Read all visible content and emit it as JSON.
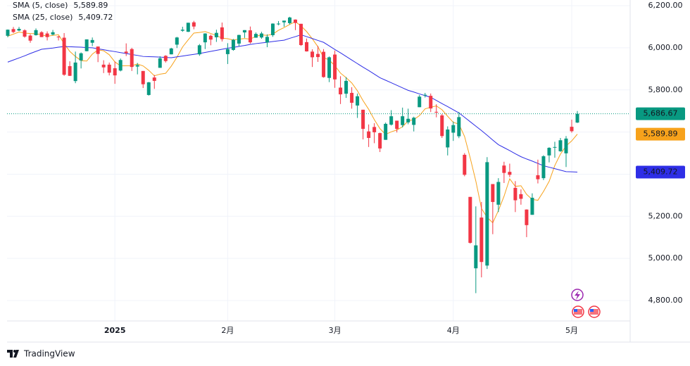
{
  "chart_data": {
    "type": "candlestick",
    "categories": [
      null,
      null,
      null,
      null,
      null,
      null,
      null,
      null,
      null,
      null,
      null,
      null,
      null,
      null,
      null,
      null,
      null,
      null,
      null,
      "2025",
      null,
      null,
      null,
      null,
      null,
      null,
      null,
      null,
      null,
      null,
      null,
      null,
      null,
      null,
      null,
      null,
      null,
      null,
      null,
      "2月",
      null,
      null,
      null,
      null,
      null,
      null,
      null,
      null,
      null,
      null,
      null,
      null,
      null,
      null,
      null,
      null,
      null,
      null,
      "3月",
      null,
      null,
      null,
      null,
      null,
      null,
      null,
      null,
      null,
      null,
      null,
      null,
      null,
      null,
      null,
      null,
      null,
      null,
      null,
      null,
      "4月",
      null,
      null,
      null,
      null,
      null,
      null,
      null,
      null,
      null,
      null,
      null,
      null,
      null,
      null,
      null,
      null,
      null,
      null,
      null,
      null,
      "5月",
      null
    ],
    "ohlc": [
      [
        6057,
        6087,
        6050,
        6086
      ],
      [
        6089,
        6099,
        6070,
        6075
      ],
      [
        6082,
        6099,
        6079,
        6090
      ],
      [
        6083,
        6088,
        6048,
        6053
      ],
      [
        6058,
        6065,
        6024,
        6034
      ],
      [
        6060,
        6092,
        6058,
        6084
      ],
      [
        6074,
        6079,
        6051,
        6051
      ],
      [
        6068,
        6078,
        6035,
        6051
      ],
      [
        6063,
        6085,
        6059,
        6074
      ],
      [
        6053,
        6057,
        6035,
        6050
      ],
      [
        6048,
        6070,
        5867,
        5872
      ],
      [
        5913,
        5936,
        5866,
        5867
      ],
      [
        5842,
        5982,
        5832,
        5930
      ],
      [
        5940,
        5978,
        5902,
        5974
      ],
      [
        5984,
        6040,
        5983,
        6040
      ],
      [
        6024,
        6049,
        6008,
        6037
      ],
      [
        6006,
        6006,
        5932,
        5971
      ],
      [
        5920,
        5941,
        5880,
        5907
      ],
      [
        5920,
        5930,
        5869,
        5882
      ],
      [
        5903,
        5935,
        5829,
        5869
      ],
      [
        5892,
        5949,
        5888,
        5942
      ],
      [
        5982,
        6021,
        5961,
        5975
      ],
      [
        5994,
        6000,
        5890,
        5909
      ],
      [
        5911,
        5928,
        5874,
        5918
      ],
      [
        5890,
        5890,
        5809,
        5827
      ],
      [
        5776,
        5838,
        5773,
        5836
      ],
      [
        5859,
        5871,
        5805,
        5843
      ],
      [
        5905,
        5960,
        5905,
        5950
      ],
      [
        5962,
        5965,
        5930,
        5937
      ],
      [
        5969,
        6000,
        5969,
        5997
      ],
      [
        6015,
        6052,
        5999,
        6049
      ],
      [
        6081,
        6100,
        6076,
        6086
      ],
      [
        6076,
        6119,
        6075,
        6119
      ],
      [
        6121,
        6128,
        6088,
        6101
      ],
      [
        5969,
        6018,
        5962,
        6012
      ],
      [
        6026,
        6069,
        5994,
        6068
      ],
      [
        6057,
        6063,
        6012,
        6039
      ],
      [
        6050,
        6086,
        6028,
        6071
      ],
      [
        6097,
        6120,
        6030,
        6041
      ],
      [
        5970,
        6022,
        5923,
        5994
      ],
      [
        5990,
        6042,
        5986,
        6038
      ],
      [
        6020,
        6062,
        6007,
        6061
      ],
      [
        6073,
        6084,
        6047,
        6084
      ],
      [
        6083,
        6101,
        6020,
        6026
      ],
      [
        6048,
        6073,
        6048,
        6066
      ],
      [
        6049,
        6076,
        6043,
        6068
      ],
      [
        6025,
        6064,
        6003,
        6052
      ],
      [
        6060,
        6116,
        6052,
        6115
      ],
      [
        6115,
        6127,
        6107,
        6115
      ],
      [
        6121,
        6129,
        6100,
        6129
      ],
      [
        6117,
        6147,
        6111,
        6144
      ],
      [
        6134,
        6135,
        6084,
        6118
      ],
      [
        6114,
        6114,
        6009,
        6013
      ],
      [
        6027,
        6044,
        5982,
        5983
      ],
      [
        5982,
        5993,
        5909,
        5955
      ],
      [
        5971,
        6009,
        5933,
        5956
      ],
      [
        5981,
        5994,
        5858,
        5861
      ],
      [
        5857,
        5959,
        5837,
        5955
      ],
      [
        5968,
        5987,
        5810,
        5850
      ],
      [
        5811,
        5865,
        5733,
        5779
      ],
      [
        5782,
        5861,
        5762,
        5843
      ],
      [
        5786,
        5813,
        5711,
        5739
      ],
      [
        5726,
        5783,
        5667,
        5770
      ],
      [
        5706,
        5706,
        5565,
        5615
      ],
      [
        5603,
        5636,
        5529,
        5572
      ],
      [
        5624,
        5642,
        5547,
        5599
      ],
      [
        5595,
        5597,
        5505,
        5522
      ],
      [
        5563,
        5645,
        5563,
        5639
      ],
      [
        5635,
        5704,
        5631,
        5675
      ],
      [
        5654,
        5654,
        5598,
        5615
      ],
      [
        5633,
        5716,
        5622,
        5675
      ],
      [
        5646,
        5711,
        5637,
        5663
      ],
      [
        5634,
        5673,
        5603,
        5668
      ],
      [
        5718,
        5776,
        5718,
        5768
      ],
      [
        5775,
        5786,
        5764,
        5777
      ],
      [
        5772,
        5783,
        5695,
        5712
      ],
      [
        5696,
        5732,
        5670,
        5693
      ],
      [
        5679,
        5686,
        5572,
        5581
      ],
      [
        5527,
        5627,
        5489,
        5612
      ],
      [
        5597,
        5650,
        5558,
        5633
      ],
      [
        5580,
        5695,
        5571,
        5671
      ],
      [
        5492,
        5500,
        5390,
        5397
      ],
      [
        5292,
        5292,
        5070,
        5074
      ],
      [
        4953,
        5247,
        4835,
        5062
      ],
      [
        5194,
        5268,
        4910,
        4983
      ],
      [
        4966,
        5481,
        4950,
        5457
      ],
      [
        5353,
        5353,
        5115,
        5268
      ],
      [
        5255,
        5381,
        5220,
        5363
      ],
      [
        5441,
        5459,
        5358,
        5406
      ],
      [
        5411,
        5450,
        5386,
        5397
      ],
      [
        5335,
        5367,
        5220,
        5276
      ],
      [
        5305,
        5328,
        5255,
        5283
      ],
      [
        5232,
        5233,
        5101,
        5158
      ],
      [
        5207,
        5309,
        5207,
        5288
      ],
      [
        5395,
        5469,
        5356,
        5376
      ],
      [
        5381,
        5490,
        5372,
        5485
      ],
      [
        5489,
        5528,
        5456,
        5525
      ],
      [
        5529,
        5554,
        5478,
        5529
      ],
      [
        5509,
        5572,
        5506,
        5561
      ],
      [
        5499,
        5581,
        5434,
        5569
      ],
      [
        5625,
        5659,
        5597,
        5604
      ],
      [
        5645,
        5700,
        5643,
        5686.67
      ]
    ],
    "up_color": "#089981",
    "down_color": "#f23645",
    "last_close_label": "5,686.67",
    "series": [
      {
        "name": "SMA (5, close)",
        "color": "#f7a21b",
        "last_value_label": "5,589.89",
        "values": [
          6055,
          6065,
          6075,
          6070,
          6068,
          6067,
          6062,
          6055,
          6059,
          6062,
          6020,
          5983,
          5959,
          5939,
          5937,
          5970,
          5990,
          5986,
          5967,
          5933,
          5914,
          5915,
          5915,
          5923,
          5914,
          5893,
          5867,
          5875,
          5879,
          5913,
          5955,
          6004,
          6038,
          6070,
          6073,
          6077,
          6068,
          6058,
          6046,
          6043,
          6037,
          6041,
          6044,
          6041,
          6055,
          6061,
          6059,
          6065,
          6083,
          6096,
          6111,
          6124,
          6104,
          6077,
          6043,
          6005,
          5954,
          5942,
          5915,
          5880,
          5858,
          5833,
          5796,
          5749,
          5708,
          5659,
          5616,
          5589,
          5601,
          5610,
          5625,
          5653,
          5659,
          5678,
          5710,
          5718,
          5724,
          5706,
          5675,
          5646,
          5638,
          5579,
          5477,
          5367,
          5237,
          5195,
          5169,
          5227,
          5295,
          5378,
          5342,
          5345,
          5304,
          5280,
          5276,
          5318,
          5366,
          5441,
          5495,
          5534,
          5558,
          5589.89
        ]
      },
      {
        "name": "SMA (25, close)",
        "color": "#2e2ee6",
        "last_value_label": "5,409.72",
        "values": [
          5932,
          5942,
          5952,
          5962,
          5973,
          5983,
          5993,
          5996,
          5999,
          6003,
          6006,
          6005,
          6004,
          6003,
          6001,
          6000,
          5995,
          5991,
          5986,
          5982,
          5977,
          5973,
          5968,
          5964,
          5959,
          5958,
          5957,
          5956,
          5954,
          5953,
          5957,
          5961,
          5965,
          5969,
          5973,
          5978,
          5983,
          5988,
          5993,
          5998,
          6002,
          6007,
          6011,
          6016,
          6020,
          6023,
          6026,
          6030,
          6033,
          6036,
          6045,
          6053,
          6062,
          6053,
          6044,
          6035,
          6026,
          6009,
          5992,
          5976,
          5959,
          5942,
          5925,
          5908,
          5892,
          5875,
          5858,
          5846,
          5834,
          5822,
          5810,
          5798,
          5790,
          5781,
          5773,
          5765,
          5750,
          5735,
          5721,
          5706,
          5691,
          5670,
          5649,
          5628,
          5607,
          5585,
          5562,
          5540,
          5526,
          5512,
          5497,
          5483,
          5472,
          5462,
          5451,
          5440,
          5433,
          5426,
          5419,
          5412,
          5411,
          5409.72
        ]
      }
    ],
    "ylim": [
      4703,
      6227
    ],
    "yticks": [
      {
        "value": 4800,
        "label": "4,800.00"
      },
      {
        "value": 5000,
        "label": "5,000.00"
      },
      {
        "value": 5200,
        "label": "5,200.00"
      },
      {
        "value": 5400,
        "label": "5,400.00"
      },
      {
        "value": 5600,
        "label": "5,600.00"
      },
      {
        "value": 5800,
        "label": "5,800.00"
      },
      {
        "value": 6000,
        "label": "6,000.00"
      },
      {
        "value": 6200,
        "label": "6,200.00"
      }
    ],
    "grid": true
  },
  "branding": "TradingView"
}
